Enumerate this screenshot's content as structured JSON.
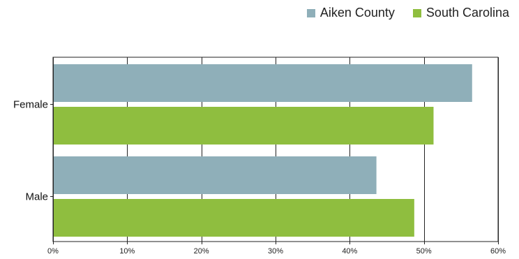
{
  "chart_data": {
    "type": "bar",
    "orientation": "horizontal",
    "categories": [
      "Female",
      "Male"
    ],
    "series": [
      {
        "name": "Aiken County",
        "color": "#8fafb9",
        "values": [
          56.5,
          43.6
        ]
      },
      {
        "name": "South Carolina",
        "color": "#8fbe3f",
        "values": [
          51.3,
          48.7
        ]
      }
    ],
    "xlim": [
      0,
      60
    ],
    "x_ticks": [
      0,
      10,
      20,
      30,
      40,
      50,
      60
    ],
    "x_tick_labels": [
      "0%",
      "10%",
      "20%",
      "30%",
      "40%",
      "50%",
      "60%"
    ],
    "grid": true,
    "legend_position": "top-right"
  }
}
